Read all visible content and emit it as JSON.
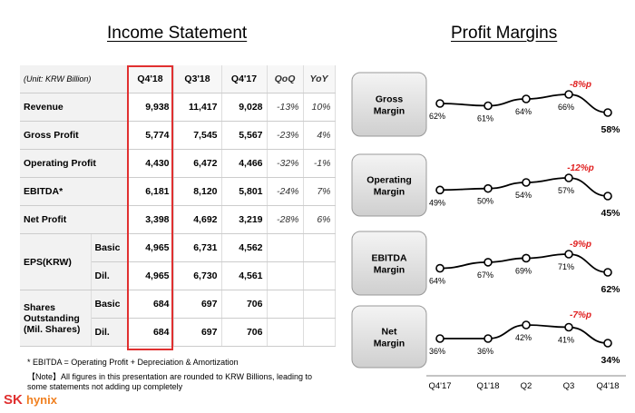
{
  "left_title": "Income Statement",
  "right_title": "Profit Margins",
  "table": {
    "header": [
      "(Unit: KRW Billion)",
      "Q4'18",
      "Q3'18",
      "Q4'17",
      "QoQ",
      "YoY"
    ],
    "rows": [
      [
        "Revenue",
        "9,938",
        "11,417",
        "9,028",
        "-13%",
        "10%"
      ],
      [
        "Gross Profit",
        "5,774",
        "7,545",
        "5,567",
        "-23%",
        "4%"
      ],
      [
        "Operating Profit",
        "4,430",
        "6,472",
        "4,466",
        "-32%",
        "-1%"
      ],
      [
        "EBITDA*",
        "6,181",
        "8,120",
        "5,801",
        "-24%",
        "7%"
      ],
      [
        "Net Profit",
        "3,398",
        "4,692",
        "3,219",
        "-28%",
        "6%"
      ]
    ],
    "groups": [
      {
        "label": "EPS(KRW)",
        "rows": [
          [
            "Basic",
            "4,965",
            "6,731",
            "4,562"
          ],
          [
            "Dil.",
            "4,965",
            "6,730",
            "4,561"
          ]
        ]
      },
      {
        "label": "Shares Outstanding (Mil. Shares)",
        "rows": [
          [
            "Basic",
            "684",
            "697",
            "706"
          ],
          [
            "Dil.",
            "684",
            "697",
            "706"
          ]
        ]
      }
    ]
  },
  "footnotes": [
    "* EBITDA = Operating Profit + Depreciation & Amortization",
    "【Note】All figures in this presentation are rounded to KRW Billions, leading to some statements not adding up completely"
  ],
  "logo": {
    "sk": "SK",
    "hynix": "hynix"
  },
  "chart_data": {
    "type": "line",
    "categories": [
      "Q4'17",
      "Q1'18",
      "Q2",
      "Q3",
      "Q4'18"
    ],
    "series": [
      {
        "name": "Gross Margin",
        "color": "#000000",
        "values": [
          62,
          61,
          64,
          66,
          58
        ],
        "value_labels": [
          "62%",
          "61%",
          "64%",
          "66%",
          "58%"
        ],
        "annotation": "-8%p"
      },
      {
        "name": "Operating Margin",
        "color": "#000000",
        "values": [
          49,
          50,
          54,
          57,
          45
        ],
        "value_labels": [
          "49%",
          "50%",
          "54%",
          "57%",
          "45%"
        ],
        "annotation": "-12%p"
      },
      {
        "name": "EBITDA Margin",
        "color": "#000000",
        "values": [
          64,
          67,
          69,
          71,
          62
        ],
        "value_labels": [
          "64%",
          "67%",
          "69%",
          "71%",
          "62%"
        ],
        "annotation": "-9%p"
      },
      {
        "name": "Net Margin",
        "color": "#000000",
        "values": [
          36,
          36,
          42,
          41,
          34
        ],
        "value_labels": [
          "36%",
          "36%",
          "42%",
          "41%",
          "34%"
        ],
        "annotation": "-7%p"
      }
    ]
  }
}
